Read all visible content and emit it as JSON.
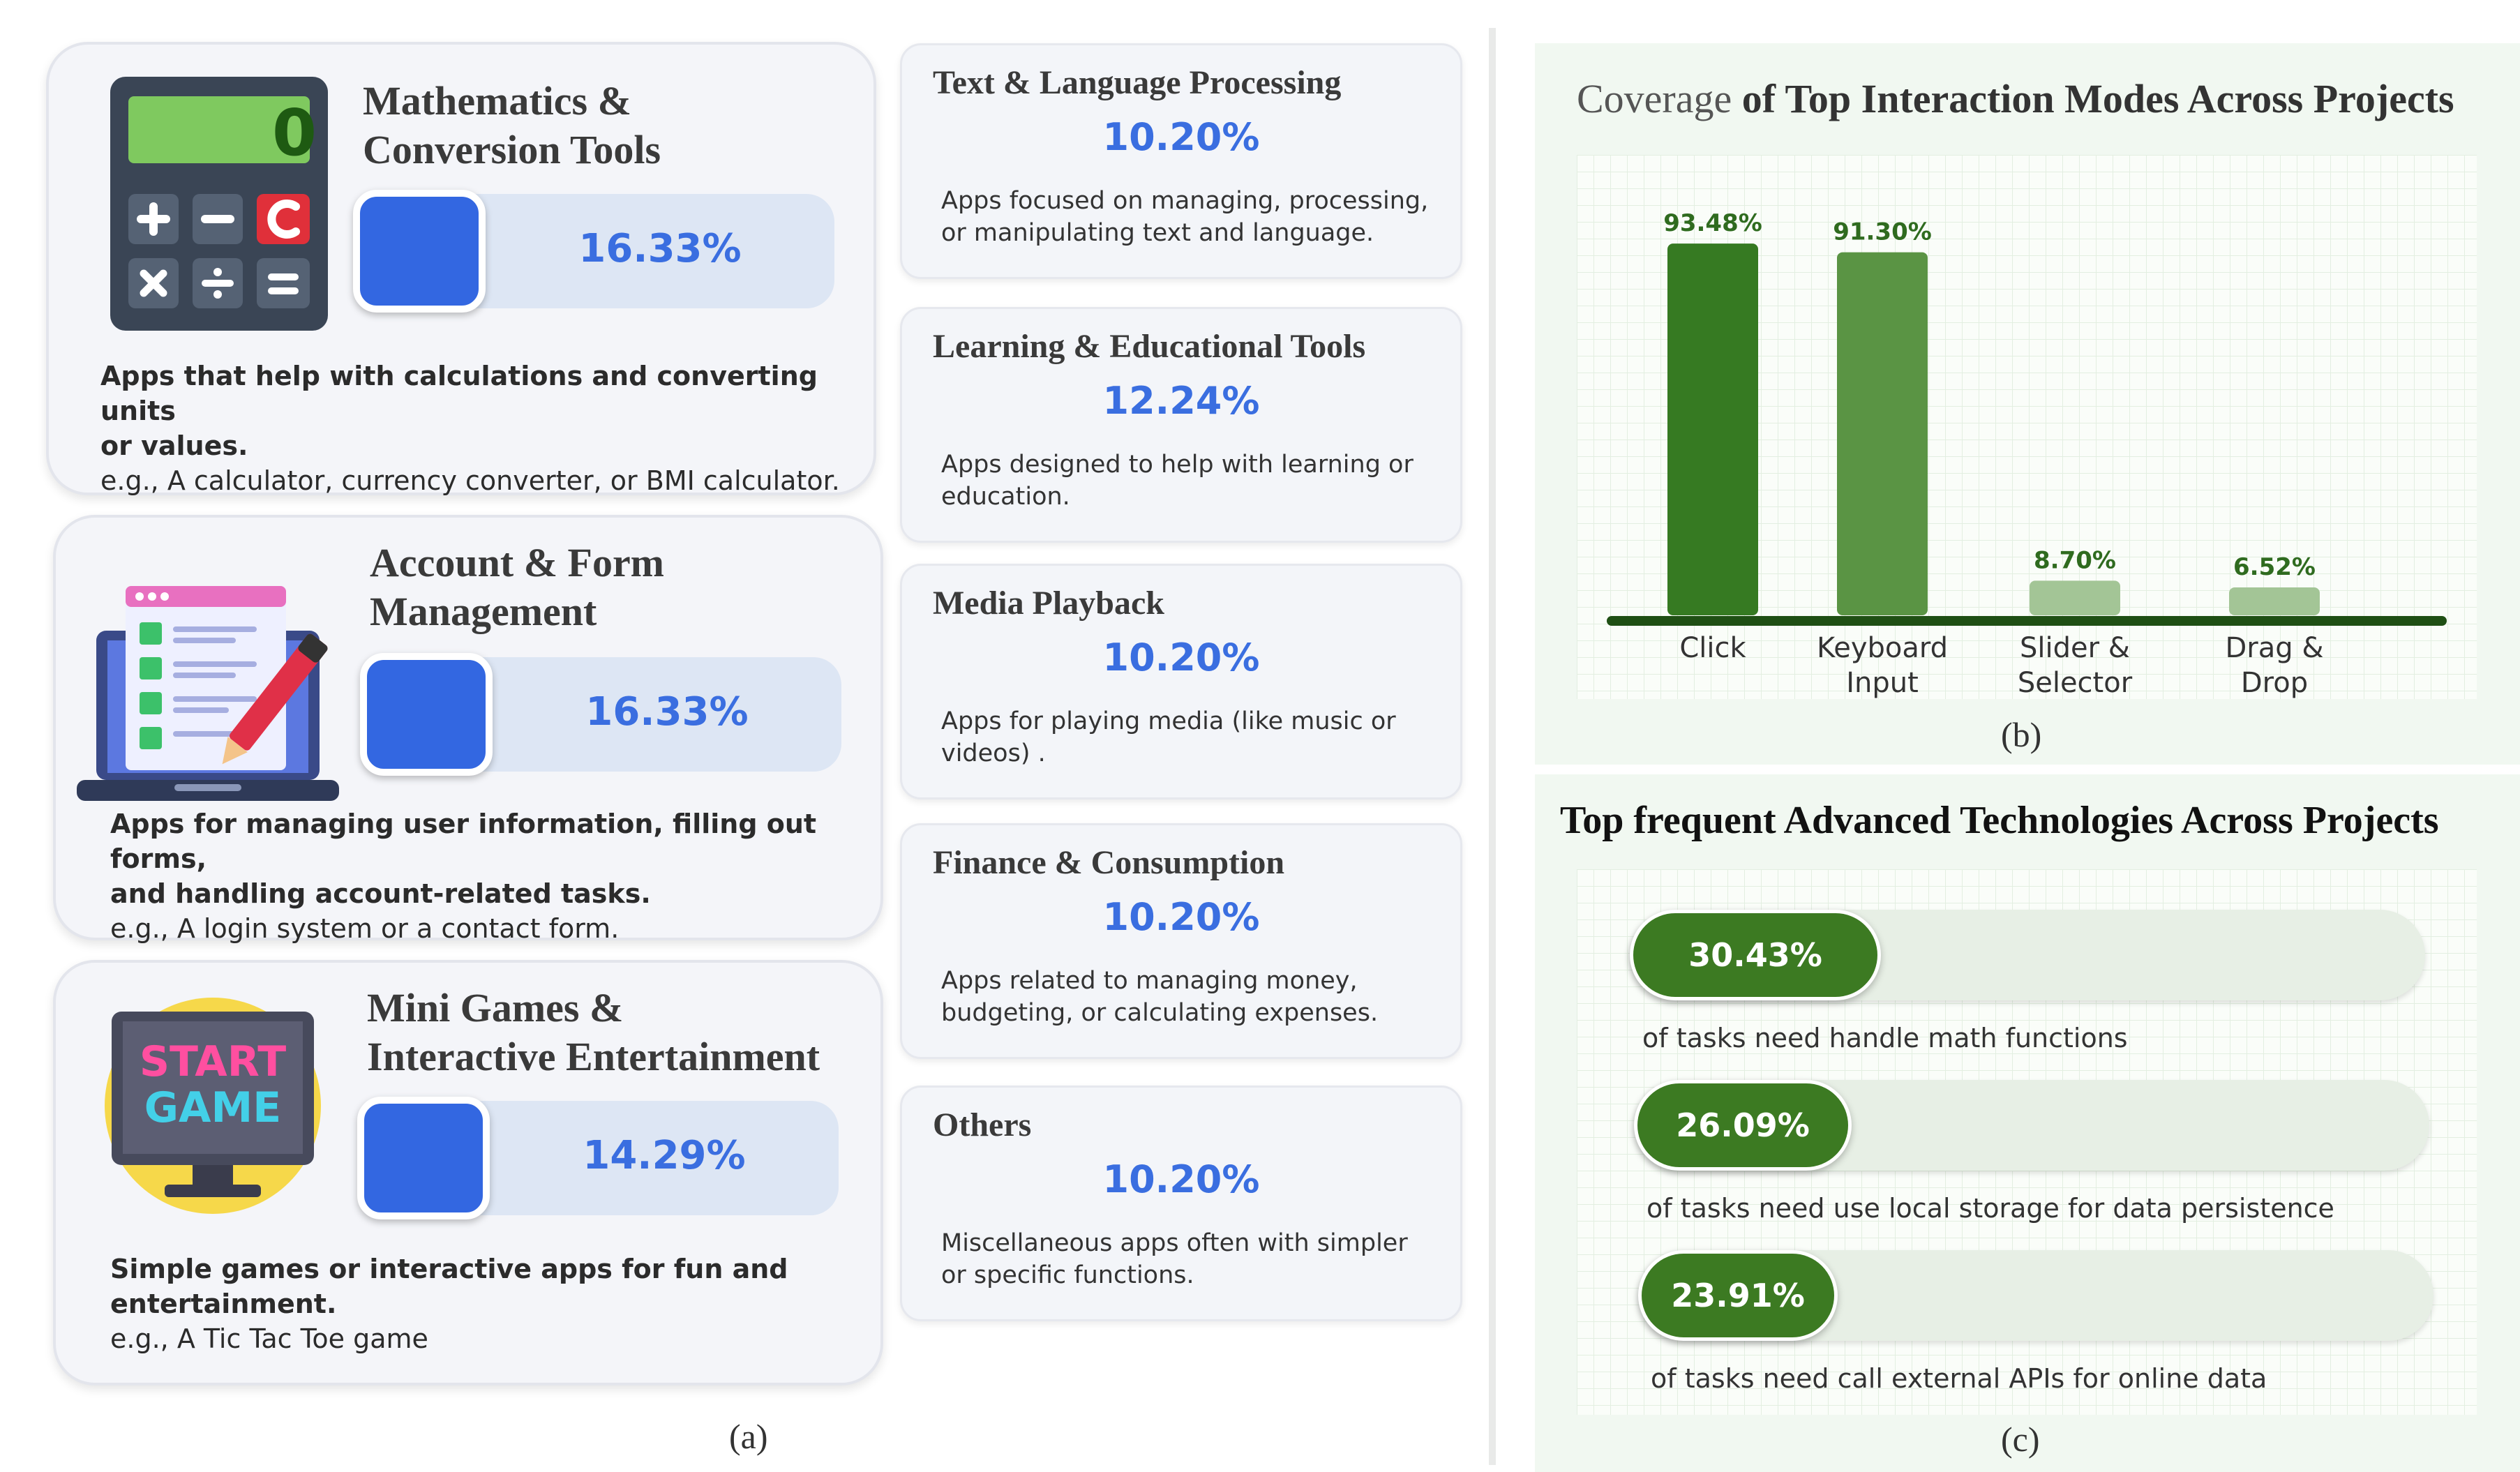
{
  "panel_a": {
    "caption": "(a)",
    "big_cards": [
      {
        "title_line1": "Mathematics &",
        "title_line2": "Conversion Tools",
        "percent": "16.33%",
        "desc_bold_line1": "Apps that help with calculations and converting units",
        "desc_bold_line2": "or values.",
        "example": "e.g., A calculator, currency converter, or BMI calculator.",
        "calculator_display": "0"
      },
      {
        "title_line1": "Account & Form",
        "title_line2": "Management",
        "percent": "16.33%",
        "desc_bold_line1": "Apps for managing user information, filling out forms,",
        "desc_bold_line2": "and handling account-related tasks.",
        "example": "e.g.,  A login system or a contact form."
      },
      {
        "title_line1": "Mini Games &",
        "title_line2": "Interactive Entertainment",
        "percent": "14.29%",
        "desc_bold_line1": "Simple games or interactive apps for fun and",
        "desc_bold_line2": "entertainment.",
        "example": "e.g., A Tic Tac Toe game",
        "screen_line1": "START",
        "screen_line2": "GAME"
      }
    ],
    "small_cards": [
      {
        "title": "Text & Language Processing",
        "percent": "10.20%",
        "desc_line1": "Apps focused on managing, processing,",
        "desc_line2": "or manipulating text and language."
      },
      {
        "title": "Learning & Educational Tools",
        "percent": "12.24%",
        "desc_line1": "Apps designed to help with learning or",
        "desc_line2": "education."
      },
      {
        "title": "Media Playback",
        "percent": "10.20%",
        "desc_line1": "Apps for playing media (like music or",
        "desc_line2": "videos) ."
      },
      {
        "title": "Finance & Consumption",
        "percent": "10.20%",
        "desc_line1": "Apps related to managing money,",
        "desc_line2": "budgeting, or calculating expenses."
      },
      {
        "title": "Others",
        "percent": "10.20%",
        "desc_line1": "Miscellaneous apps often with simpler",
        "desc_line2": "or specific functions."
      }
    ]
  },
  "panel_b": {
    "caption": "(b)",
    "title_part1": "Coverage",
    "title_part2": " of Top Interaction Modes Across Projects",
    "colors": {
      "dark": "#367a22",
      "mid": "#5a9444",
      "light": "#a3c596",
      "axis": "#1f4f14"
    }
  },
  "chart_data": {
    "type": "bar",
    "title": "Coverage of Top Interaction Modes Across Projects",
    "categories": [
      "Click",
      "Keyboard Input",
      "Slider & Selector",
      "Drag & Drop"
    ],
    "category_lines": [
      [
        "Click"
      ],
      [
        "Keyboard",
        "Input"
      ],
      [
        "Slider &",
        "Selector"
      ],
      [
        "Drag &",
        "Drop"
      ]
    ],
    "values": [
      93.48,
      91.3,
      8.7,
      6.52
    ],
    "value_labels": [
      "93.48%",
      "91.30%",
      "8.70%",
      "6.52%"
    ],
    "ylim": [
      0,
      100
    ],
    "grid": true
  },
  "panel_c": {
    "caption": "(c)",
    "title": "Top frequent Advanced Technologies Across Projects",
    "items": [
      {
        "percent": "30.43%",
        "value": 30.43,
        "desc": "of tasks need handle math functions"
      },
      {
        "percent": "26.09%",
        "value": 26.09,
        "desc": "of tasks need use local storage for data persistence"
      },
      {
        "percent": "23.91%",
        "value": 23.91,
        "desc": "of tasks need call external APIs for online data"
      }
    ]
  }
}
